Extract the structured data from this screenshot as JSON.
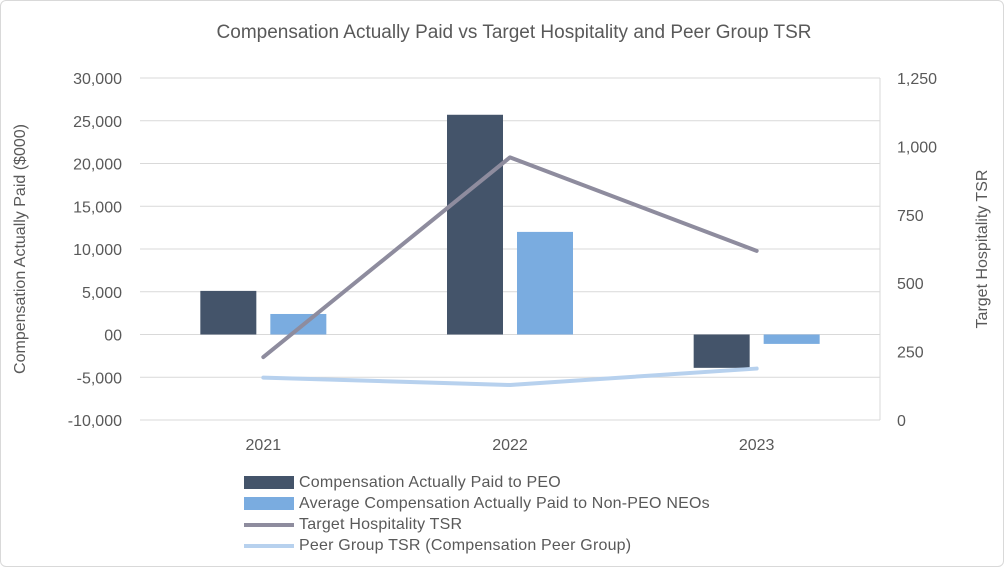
{
  "chart_data": {
    "type": "bar+line",
    "title": "Compensation Actually Paid vs Target Hospitality and Peer Group TSR",
    "categories": [
      "2021",
      "2022",
      "2023"
    ],
    "y_left": {
      "label": "Compensation Actually Paid ($000)",
      "min": -10000,
      "max": 30000,
      "ticks": [
        30000,
        25000,
        20000,
        15000,
        10000,
        5000,
        0,
        -5000,
        -10000
      ],
      "tick_labels": [
        "30,000",
        "25,000",
        "20,000",
        "15,000",
        "10,000",
        "5,000",
        "00",
        "-5,000",
        "-10,000"
      ]
    },
    "y_right": {
      "label": "Target Hospitality TSR",
      "min": 0,
      "max": 1250,
      "ticks": [
        1250,
        1000,
        750,
        500,
        250,
        0
      ],
      "tick_labels": [
        "1,250",
        "1,000",
        "750",
        "500",
        "250",
        "0"
      ]
    },
    "grid": true,
    "legend_position": "bottom",
    "series": [
      {
        "name": "Compensation Actually Paid to PEO",
        "kind": "bar",
        "axis": "left",
        "color": "#44546a",
        "values": [
          5100,
          25700,
          -3900
        ]
      },
      {
        "name": "Average Compensation Actually Paid to Non-PEO NEOs",
        "kind": "bar",
        "axis": "left",
        "color": "#7aace0",
        "values": [
          2400,
          12000,
          -1100
        ]
      },
      {
        "name": "Target Hospitality TSR",
        "kind": "line",
        "axis": "right",
        "color": "#8e8c9e",
        "values": [
          230,
          960,
          618
        ]
      },
      {
        "name": "Peer Group TSR (Compensation Peer Group)",
        "kind": "line",
        "axis": "right",
        "color": "#b7d1ee",
        "values": [
          155,
          128,
          188
        ]
      }
    ]
  }
}
